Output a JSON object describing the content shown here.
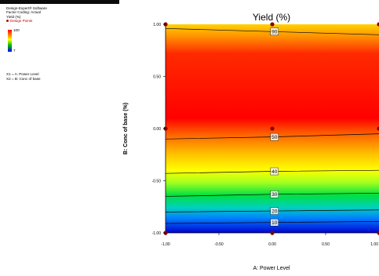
{
  "software": {
    "name": "Design-Expert® Software",
    "coding": "Factor Coding: Actual",
    "response": "Yield (%)",
    "design_points_label": "Design Points",
    "scale_high": "100",
    "scale_low": "7",
    "factor_x": "X1 = A: Power Level",
    "factor_y": "X2 = B: Conc of base"
  },
  "colors": {
    "high": "#ff0000",
    "mid": "#ffff00",
    "green": "#00c000",
    "low": "#0000ff",
    "design_point": "#8b0000"
  },
  "chart_data": {
    "type": "contour",
    "title": "Yield (%)",
    "xlabel": "A: Power Level",
    "ylabel": "B: Conc of base (%)",
    "xlim": [
      -1,
      1
    ],
    "ylim": [
      -1,
      1
    ],
    "x_ticks": [
      "-1.00",
      "-0.50",
      "0.00",
      "0.50",
      "1.00"
    ],
    "y_ticks": [
      "1.00",
      "0.50",
      "0.00",
      "-0.50",
      "-1.00"
    ],
    "contours": [
      {
        "level": "90",
        "y": [
          0.96,
          0.93,
          0.9
        ]
      },
      {
        "level": "50",
        "y": [
          -0.1,
          -0.08,
          -0.05
        ]
      },
      {
        "level": "40",
        "y": [
          -0.43,
          -0.41,
          -0.4
        ]
      },
      {
        "level": "30",
        "y": [
          -0.65,
          -0.63,
          -0.62
        ]
      },
      {
        "level": "20",
        "y": [
          -0.8,
          -0.79,
          -0.78
        ]
      },
      {
        "level": "10",
        "y": [
          -0.91,
          -0.9,
          -0.89
        ]
      }
    ],
    "design_points": [
      {
        "x": -1,
        "y": 1
      },
      {
        "x": 0,
        "y": 1
      },
      {
        "x": 1,
        "y": 1
      },
      {
        "x": -1,
        "y": 0
      },
      {
        "x": 0,
        "y": 0
      },
      {
        "x": 1,
        "y": 0
      },
      {
        "x": -1,
        "y": -1
      },
      {
        "x": 0,
        "y": -1
      },
      {
        "x": 1,
        "y": -1
      }
    ]
  }
}
